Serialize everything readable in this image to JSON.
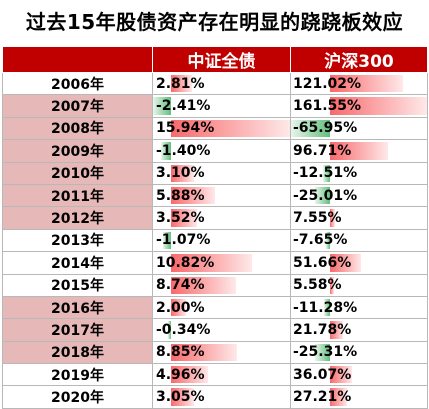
{
  "title": "过去15年股债资产存在明显的跷跷板效应",
  "headers": [
    "",
    "中证全债",
    "沪深300"
  ],
  "chart_data": {
    "type": "table",
    "title": "过去15年股债资产存在明显的跷跷板效应",
    "columns": [
      "",
      "中证全债",
      "沪深300"
    ],
    "rows": [
      {
        "year": "2006年",
        "bond": 2.81,
        "bond_label": "2.81%",
        "stock": 121.02,
        "stock_label": "121.02%",
        "highlight": false
      },
      {
        "year": "2007年",
        "bond": -2.41,
        "bond_label": "-2.41%",
        "stock": 161.55,
        "stock_label": "161.55%",
        "highlight": true
      },
      {
        "year": "2008年",
        "bond": 15.94,
        "bond_label": "15.94%",
        "stock": -65.95,
        "stock_label": "-65.95%",
        "highlight": true
      },
      {
        "year": "2009年",
        "bond": -1.4,
        "bond_label": "-1.40%",
        "stock": 96.71,
        "stock_label": "96.71%",
        "highlight": true
      },
      {
        "year": "2010年",
        "bond": 3.1,
        "bond_label": "3.10%",
        "stock": -12.51,
        "stock_label": "-12.51%",
        "highlight": true
      },
      {
        "year": "2011年",
        "bond": 5.88,
        "bond_label": "5.88%",
        "stock": -25.01,
        "stock_label": "-25.01%",
        "highlight": true
      },
      {
        "year": "2012年",
        "bond": 3.52,
        "bond_label": "3.52%",
        "stock": 7.55,
        "stock_label": "7.55%",
        "highlight": true
      },
      {
        "year": "2013年",
        "bond": -1.07,
        "bond_label": "-1.07%",
        "stock": -7.65,
        "stock_label": "-7.65%",
        "highlight": false
      },
      {
        "year": "2014年",
        "bond": 10.82,
        "bond_label": "10.82%",
        "stock": 51.66,
        "stock_label": "51.66%",
        "highlight": false
      },
      {
        "year": "2015年",
        "bond": 8.74,
        "bond_label": "8.74%",
        "stock": 5.58,
        "stock_label": "5.58%",
        "highlight": false
      },
      {
        "year": "2016年",
        "bond": 2.0,
        "bond_label": "2.00%",
        "stock": -11.28,
        "stock_label": "-11.28%",
        "highlight": true
      },
      {
        "year": "2017年",
        "bond": -0.34,
        "bond_label": "-0.34%",
        "stock": 21.78,
        "stock_label": "21.78%",
        "highlight": true
      },
      {
        "year": "2018年",
        "bond": 8.85,
        "bond_label": "8.85%",
        "stock": -25.31,
        "stock_label": "-25.31%",
        "highlight": true
      },
      {
        "year": "2019年",
        "bond": 4.96,
        "bond_label": "4.96%",
        "stock": 36.07,
        "stock_label": "36.07%",
        "highlight": false
      },
      {
        "year": "2020年",
        "bond": 3.05,
        "bond_label": "3.05%",
        "stock": 27.21,
        "stock_label": "27.21%",
        "highlight": false
      }
    ]
  },
  "colors": {
    "header_bg": "#c00000",
    "header_text": "#ffffff",
    "positive_bar": "#f8696b",
    "negative_bar": "#63be7b",
    "highlight_year_bg": "#e6b8b7"
  }
}
